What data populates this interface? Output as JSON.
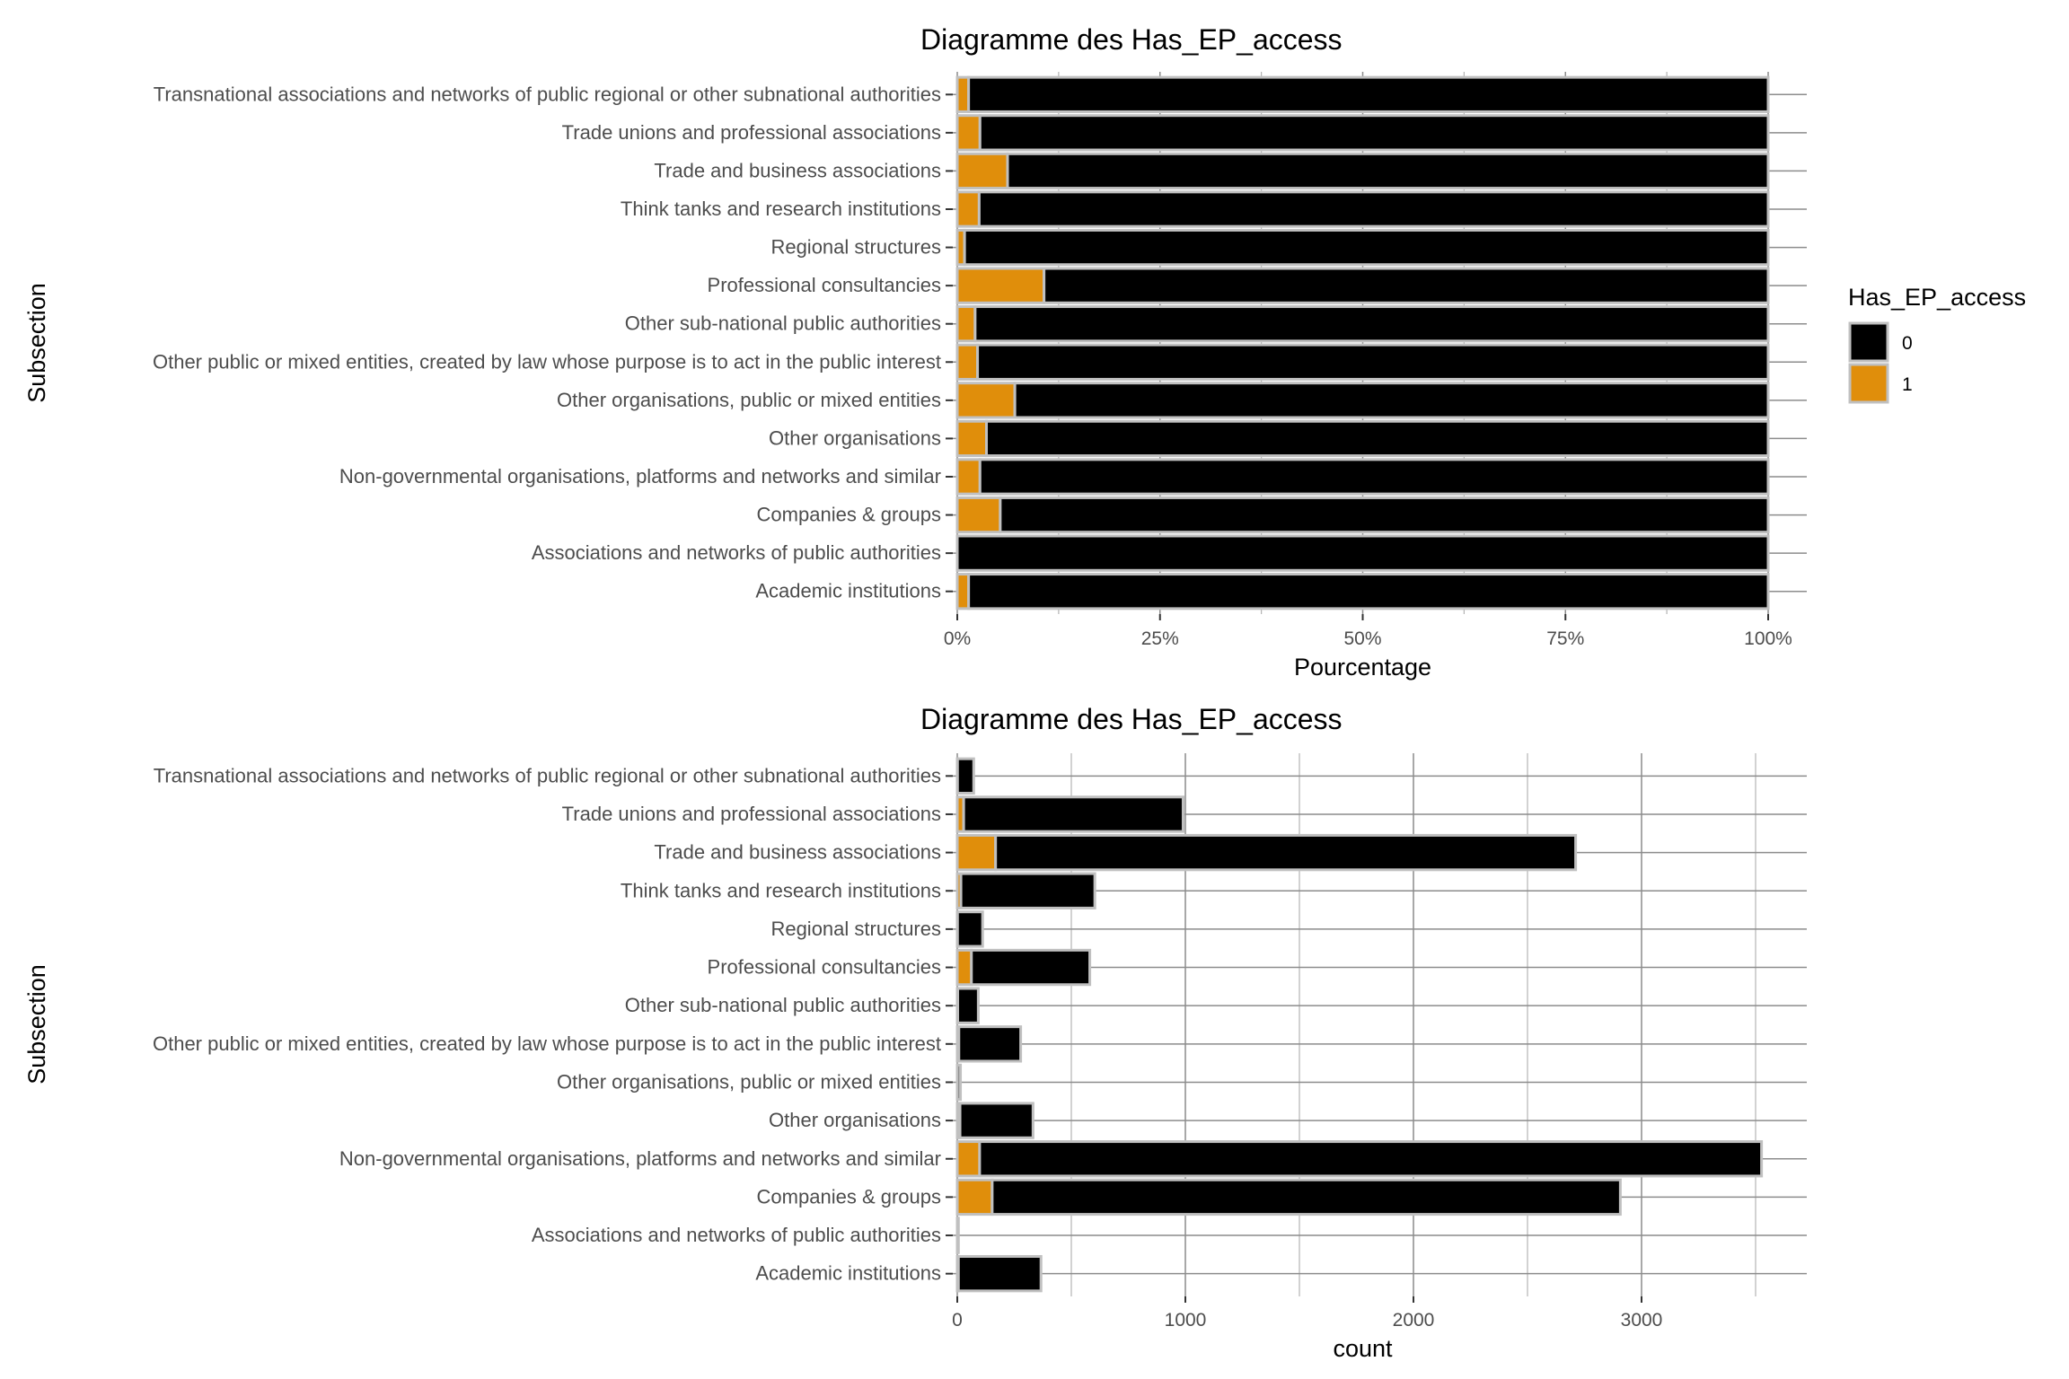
{
  "legend": {
    "title": "Has_EP_access",
    "items": [
      {
        "label": "0",
        "color": "#000000"
      },
      {
        "label": "1",
        "color": "#E08E0B"
      }
    ]
  },
  "chart_data": [
    {
      "type": "bar",
      "orientation": "horizontal",
      "stacked": "fill",
      "title": "Diagramme des Has_EP_access",
      "xlabel": "Pourcentage",
      "ylabel": "Subsection",
      "xlim": [
        0,
        1
      ],
      "xticks": [
        0,
        0.25,
        0.5,
        0.75,
        1
      ],
      "xtick_labels": [
        "0%",
        "25%",
        "50%",
        "75%",
        "100%"
      ],
      "grid": true,
      "legend_position": "right",
      "categories": [
        "Transnational associations and networks of public regional or other subnational authorities",
        "Trade unions and professional associations",
        "Trade and business associations",
        "Think tanks and research institutions",
        "Regional structures",
        "Professional consultancies",
        "Other sub-national public authorities",
        "Other public or mixed entities, created by law whose purpose is to act in the public interest",
        "Other organisations, public or mixed entities",
        "Other organisations",
        "Non-governmental organisations, platforms and networks and similar",
        "Companies & groups",
        "Associations and networks of public authorities",
        "Academic institutions"
      ],
      "series": [
        {
          "name": "1",
          "values": [
            0.014,
            0.028,
            0.062,
            0.027,
            0.009,
            0.107,
            0.022,
            0.025,
            0.071,
            0.036,
            0.028,
            0.053,
            0.0,
            0.014
          ]
        },
        {
          "name": "0",
          "values": [
            0.986,
            0.972,
            0.938,
            0.973,
            0.991,
            0.893,
            0.978,
            0.975,
            0.929,
            0.964,
            0.972,
            0.947,
            1.0,
            0.986
          ]
        }
      ]
    },
    {
      "type": "bar",
      "orientation": "horizontal",
      "stacked": "stack",
      "title": "Diagramme des Has_EP_access",
      "xlabel": "count",
      "ylabel": "Subsection",
      "xlim": [
        0,
        3700
      ],
      "xticks": [
        0,
        1000,
        2000,
        3000
      ],
      "xtick_labels": [
        "0",
        "1000",
        "2000",
        "3000"
      ],
      "grid": true,
      "categories": [
        "Transnational associations and networks of public regional or other subnational authorities",
        "Trade unions and professional associations",
        "Trade and business associations",
        "Think tanks and research institutions",
        "Regional structures",
        "Professional consultancies",
        "Other sub-national public authorities",
        "Other public or mixed entities, created by law whose purpose is to act in the public interest",
        "Other organisations, public or mixed entities",
        "Other organisations",
        "Non-governmental organisations, platforms and networks and similar",
        "Companies & groups",
        "Associations and networks of public authorities",
        "Academic institutions"
      ],
      "series": [
        {
          "name": "1",
          "values": [
            1,
            28,
            168,
            16,
            1,
            62,
            2,
            7,
            1,
            12,
            98,
            153,
            0,
            5
          ]
        },
        {
          "name": "0",
          "values": [
            71,
            962,
            2543,
            587,
            110,
            519,
            90,
            271,
            13,
            320,
            3428,
            2754,
            5,
            362
          ]
        }
      ]
    }
  ]
}
